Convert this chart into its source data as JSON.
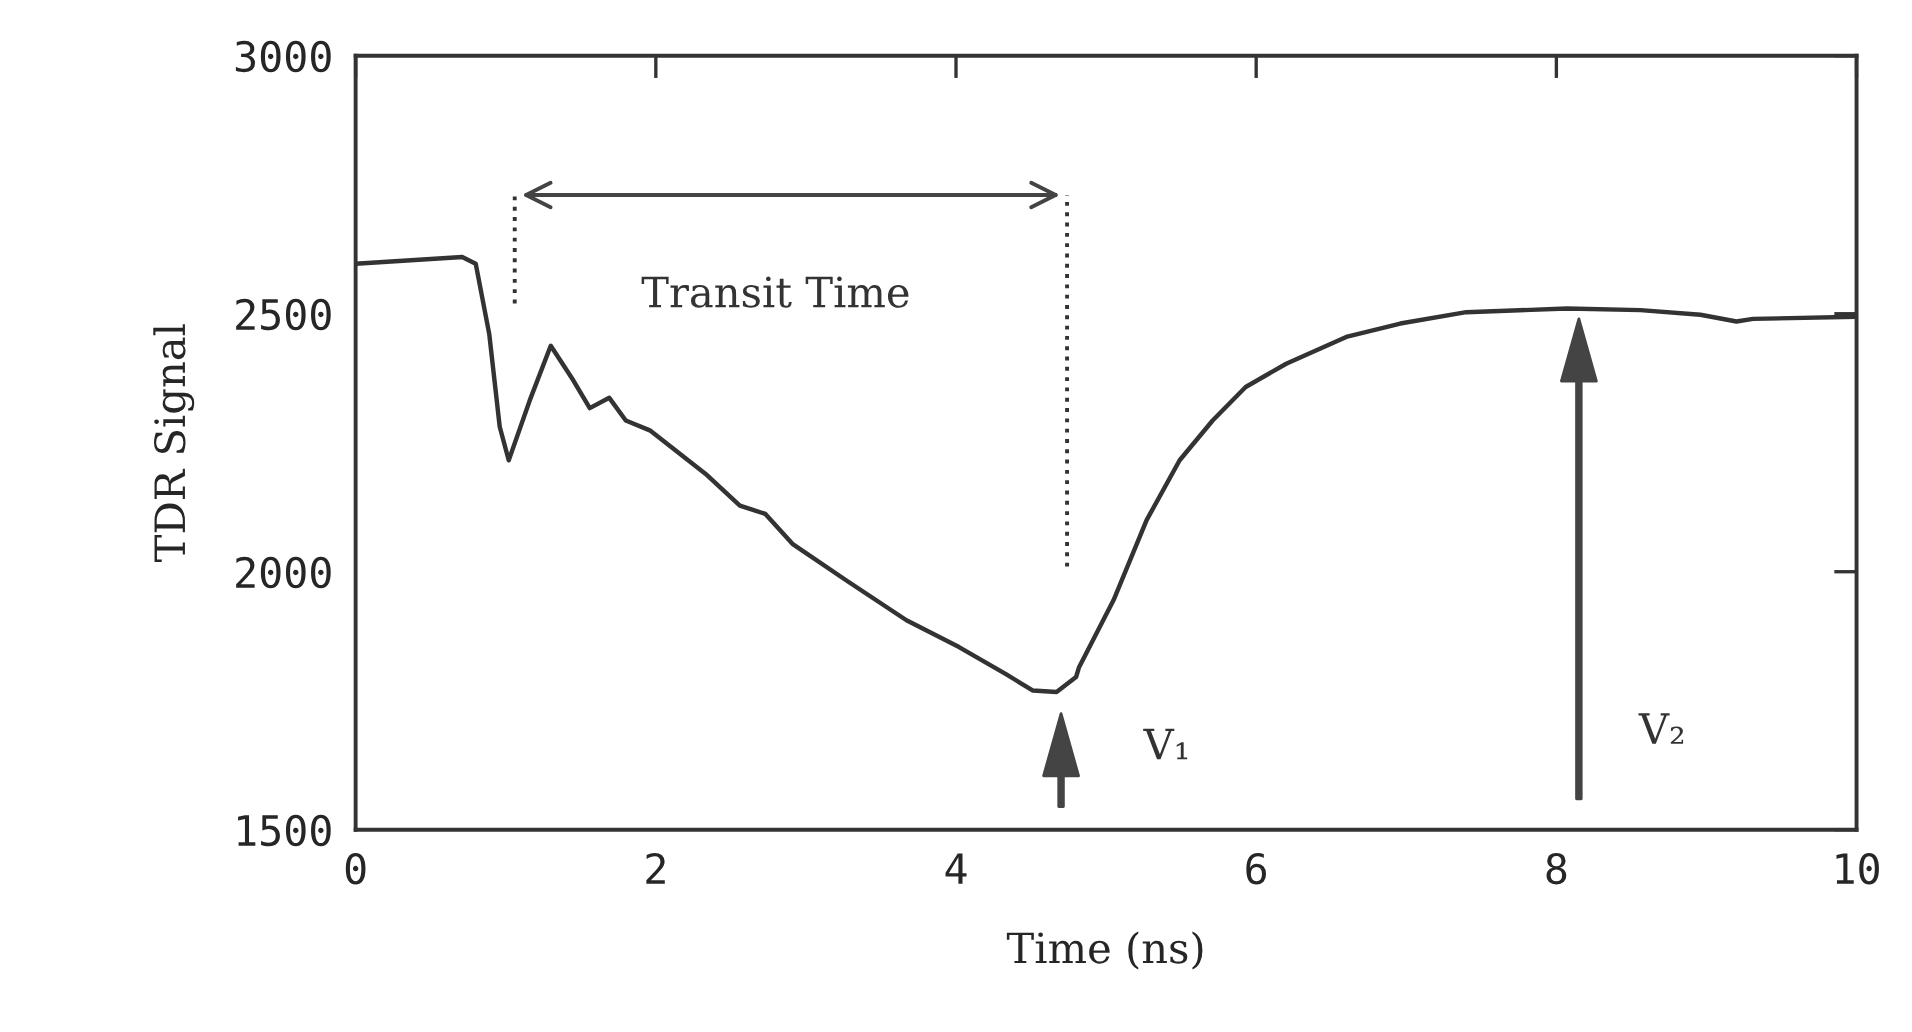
{
  "chart_data": {
    "type": "line",
    "xlabel": "Time (ns)",
    "ylabel": "TDR Signal",
    "xlim": [
      0,
      10
    ],
    "xticks": [
      0,
      2,
      4,
      6,
      8,
      10
    ],
    "ylim": [
      1500,
      3000
    ],
    "yticks": [
      1500,
      2000,
      2500,
      3000
    ],
    "grid": false,
    "legend": false,
    "marker": "none",
    "line_style": "solid",
    "series": [
      {
        "color": "#333333",
        "x": [
          0,
          0.71,
          0.8,
          0.89,
          0.96,
          1.02,
          1.16,
          1.3,
          1.45,
          1.56,
          1.69,
          1.8,
          1.96,
          2.33,
          2.56,
          2.73,
          2.91,
          3.27,
          3.67,
          4.02,
          4.33,
          4.51,
          4.67,
          4.8,
          4.82,
          5.05,
          5.27,
          5.49,
          5.71,
          5.93,
          6.2,
          6.6,
          6.96,
          7.4,
          8.07,
          8.56,
          8.96,
          9.2,
          9.31,
          10.0
        ],
        "values": [
          2597,
          2610,
          2597,
          2461,
          2281,
          2216,
          2332,
          2438,
          2371,
          2317,
          2337,
          2293,
          2274,
          2190,
          2128,
          2112,
          2054,
          1983,
          1906,
          1854,
          1802,
          1770,
          1767,
          1796,
          1815,
          1945,
          2100,
          2216,
          2293,
          2358,
          2403,
          2455,
          2481,
          2503,
          2510,
          2507,
          2498,
          2485,
          2490,
          2494
        ]
      }
    ],
    "annotations": [
      "Transit Time",
      "V₁",
      "V₂"
    ]
  }
}
